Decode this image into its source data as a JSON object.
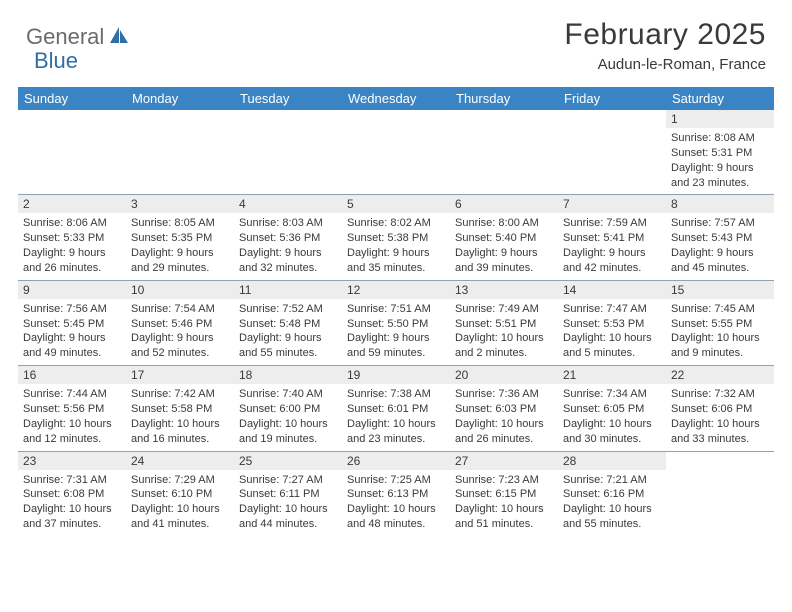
{
  "logo": {
    "part1": "General",
    "part2": "Blue"
  },
  "title": "February 2025",
  "location": "Audun-le-Roman, France",
  "colors": {
    "header_bg": "#3b84c4",
    "header_fg": "#ffffff",
    "daynum_bg": "#ededed",
    "border": "#8aa3b8",
    "text": "#3a3a3a",
    "logo_gray": "#6b6b6b",
    "logo_blue": "#2f6fa8",
    "page_bg": "#ffffff"
  },
  "day_headers": [
    "Sunday",
    "Monday",
    "Tuesday",
    "Wednesday",
    "Thursday",
    "Friday",
    "Saturday"
  ],
  "weeks": [
    [
      null,
      null,
      null,
      null,
      null,
      null,
      {
        "n": "1",
        "sr": "8:08 AM",
        "ss": "5:31 PM",
        "dl": "9 hours and 23 minutes."
      }
    ],
    [
      {
        "n": "2",
        "sr": "8:06 AM",
        "ss": "5:33 PM",
        "dl": "9 hours and 26 minutes."
      },
      {
        "n": "3",
        "sr": "8:05 AM",
        "ss": "5:35 PM",
        "dl": "9 hours and 29 minutes."
      },
      {
        "n": "4",
        "sr": "8:03 AM",
        "ss": "5:36 PM",
        "dl": "9 hours and 32 minutes."
      },
      {
        "n": "5",
        "sr": "8:02 AM",
        "ss": "5:38 PM",
        "dl": "9 hours and 35 minutes."
      },
      {
        "n": "6",
        "sr": "8:00 AM",
        "ss": "5:40 PM",
        "dl": "9 hours and 39 minutes."
      },
      {
        "n": "7",
        "sr": "7:59 AM",
        "ss": "5:41 PM",
        "dl": "9 hours and 42 minutes."
      },
      {
        "n": "8",
        "sr": "7:57 AM",
        "ss": "5:43 PM",
        "dl": "9 hours and 45 minutes."
      }
    ],
    [
      {
        "n": "9",
        "sr": "7:56 AM",
        "ss": "5:45 PM",
        "dl": "9 hours and 49 minutes."
      },
      {
        "n": "10",
        "sr": "7:54 AM",
        "ss": "5:46 PM",
        "dl": "9 hours and 52 minutes."
      },
      {
        "n": "11",
        "sr": "7:52 AM",
        "ss": "5:48 PM",
        "dl": "9 hours and 55 minutes."
      },
      {
        "n": "12",
        "sr": "7:51 AM",
        "ss": "5:50 PM",
        "dl": "9 hours and 59 minutes."
      },
      {
        "n": "13",
        "sr": "7:49 AM",
        "ss": "5:51 PM",
        "dl": "10 hours and 2 minutes."
      },
      {
        "n": "14",
        "sr": "7:47 AM",
        "ss": "5:53 PM",
        "dl": "10 hours and 5 minutes."
      },
      {
        "n": "15",
        "sr": "7:45 AM",
        "ss": "5:55 PM",
        "dl": "10 hours and 9 minutes."
      }
    ],
    [
      {
        "n": "16",
        "sr": "7:44 AM",
        "ss": "5:56 PM",
        "dl": "10 hours and 12 minutes."
      },
      {
        "n": "17",
        "sr": "7:42 AM",
        "ss": "5:58 PM",
        "dl": "10 hours and 16 minutes."
      },
      {
        "n": "18",
        "sr": "7:40 AM",
        "ss": "6:00 PM",
        "dl": "10 hours and 19 minutes."
      },
      {
        "n": "19",
        "sr": "7:38 AM",
        "ss": "6:01 PM",
        "dl": "10 hours and 23 minutes."
      },
      {
        "n": "20",
        "sr": "7:36 AM",
        "ss": "6:03 PM",
        "dl": "10 hours and 26 minutes."
      },
      {
        "n": "21",
        "sr": "7:34 AM",
        "ss": "6:05 PM",
        "dl": "10 hours and 30 minutes."
      },
      {
        "n": "22",
        "sr": "7:32 AM",
        "ss": "6:06 PM",
        "dl": "10 hours and 33 minutes."
      }
    ],
    [
      {
        "n": "23",
        "sr": "7:31 AM",
        "ss": "6:08 PM",
        "dl": "10 hours and 37 minutes."
      },
      {
        "n": "24",
        "sr": "7:29 AM",
        "ss": "6:10 PM",
        "dl": "10 hours and 41 minutes."
      },
      {
        "n": "25",
        "sr": "7:27 AM",
        "ss": "6:11 PM",
        "dl": "10 hours and 44 minutes."
      },
      {
        "n": "26",
        "sr": "7:25 AM",
        "ss": "6:13 PM",
        "dl": "10 hours and 48 minutes."
      },
      {
        "n": "27",
        "sr": "7:23 AM",
        "ss": "6:15 PM",
        "dl": "10 hours and 51 minutes."
      },
      {
        "n": "28",
        "sr": "7:21 AM",
        "ss": "6:16 PM",
        "dl": "10 hours and 55 minutes."
      },
      null
    ]
  ],
  "labels": {
    "sunrise": "Sunrise:",
    "sunset": "Sunset:",
    "daylight": "Daylight:"
  }
}
